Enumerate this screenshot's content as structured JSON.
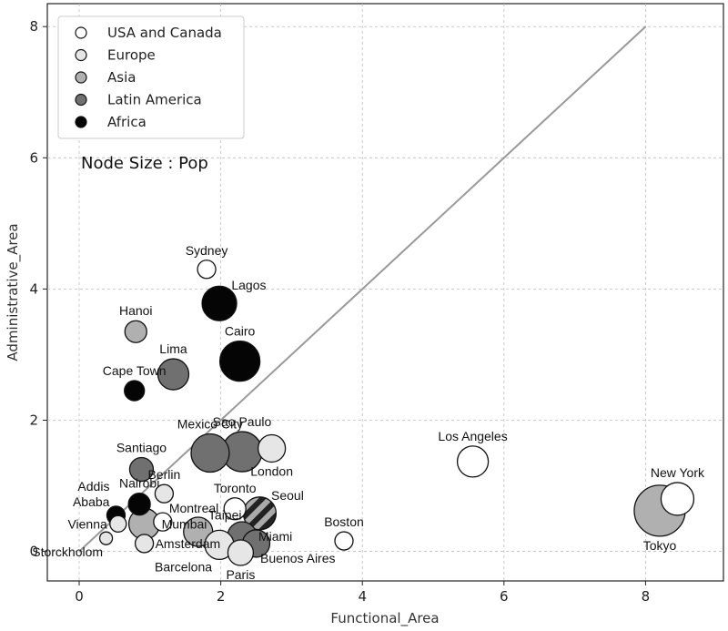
{
  "chart_data": {
    "type": "scatter",
    "xlabel": "Functional_Area",
    "ylabel": "Administrative_Area",
    "xlim": [
      -0.45,
      9.1
    ],
    "ylim": [
      -0.45,
      8.35
    ],
    "xticks": [
      0,
      2,
      4,
      6,
      8
    ],
    "yticks": [
      0,
      2,
      4,
      6,
      8
    ],
    "grid": true,
    "legend_position": "top-left",
    "annotation": "Node Size : Pop",
    "reference_line": {
      "x": [
        0,
        8
      ],
      "y": [
        0,
        8
      ],
      "color": "#999999"
    },
    "regions": [
      {
        "name": "USA and Canada",
        "color": "#ffffff"
      },
      {
        "name": "Europe",
        "color": "#e6e6e6"
      },
      {
        "name": "Asia",
        "color": "#b0b0b0"
      },
      {
        "name": "Latin America",
        "color": "#707070"
      },
      {
        "name": "Africa",
        "color": "#050505"
      }
    ],
    "points": [
      {
        "label": "Sydney",
        "x": 1.8,
        "y": 4.3,
        "size": 10,
        "region": "USA and Canada",
        "label_pos": "above"
      },
      {
        "label": "Lagos",
        "x": 1.98,
        "y": 3.78,
        "size": 19,
        "region": "Africa",
        "label_pos": "above-right"
      },
      {
        "label": "Hanoi",
        "x": 0.8,
        "y": 3.35,
        "size": 12,
        "region": "Asia",
        "label_pos": "above"
      },
      {
        "label": "Cairo",
        "x": 2.27,
        "y": 2.9,
        "size": 22,
        "region": "Africa",
        "label_pos": "above"
      },
      {
        "label": "Lima",
        "x": 1.33,
        "y": 2.7,
        "size": 17,
        "region": "Latin America",
        "label_pos": "above"
      },
      {
        "label": "Cape Town",
        "x": 0.78,
        "y": 2.45,
        "size": 11,
        "region": "Africa",
        "label_pos": "above"
      },
      {
        "label": "Mexico City",
        "x": 1.85,
        "y": 1.5,
        "size": 21,
        "region": "Latin America",
        "label_pos": "above"
      },
      {
        "label": "Sao Paulo",
        "x": 2.3,
        "y": 1.52,
        "size": 22,
        "region": "Latin America",
        "label_pos": "above"
      },
      {
        "label": "London",
        "x": 2.72,
        "y": 1.57,
        "size": 15,
        "region": "Europe",
        "label_pos": "below"
      },
      {
        "label": "Los Angeles",
        "x": 5.56,
        "y": 1.37,
        "size": 17,
        "region": "USA and Canada",
        "label_pos": "above"
      },
      {
        "label": "New York",
        "x": 8.45,
        "y": 0.8,
        "size": 18,
        "region": "USA and Canada",
        "label_pos": "above"
      },
      {
        "label": "Tokyo",
        "x": 8.2,
        "y": 0.62,
        "size": 28,
        "region": "Asia",
        "label_pos": "below"
      },
      {
        "label": "Santiago",
        "x": 0.88,
        "y": 1.25,
        "size": 13,
        "region": "Latin America",
        "label_pos": "above"
      },
      {
        "label": "Berlin",
        "x": 1.2,
        "y": 0.88,
        "size": 10,
        "region": "Europe",
        "label_pos": "above"
      },
      {
        "label": "Addis Ababa",
        "x": 0.52,
        "y": 0.55,
        "size": 10,
        "region": "Africa",
        "label_pos": "above-left"
      },
      {
        "label": "Nairobi",
        "x": 0.85,
        "y": 0.72,
        "size": 12,
        "region": "Africa",
        "label_pos": "above"
      },
      {
        "label": "Montreal",
        "x": 1.18,
        "y": 0.45,
        "size": 10,
        "region": "USA and Canada",
        "label_pos": "above-right"
      },
      {
        "label": "Toronto",
        "x": 2.2,
        "y": 0.65,
        "size": 12,
        "region": "USA and Canada",
        "label_pos": "above"
      },
      {
        "label": "Seoul",
        "x": 2.55,
        "y": 0.58,
        "size": 18,
        "region": "Asia",
        "label_pos": "above-right",
        "hatch": true
      },
      {
        "label": "Vienna",
        "x": 0.55,
        "y": 0.42,
        "size": 9,
        "region": "Europe",
        "label_pos": "left"
      },
      {
        "label": "Mumbai",
        "x": 0.92,
        "y": 0.42,
        "size": 17,
        "region": "Asia",
        "label_pos": "right"
      },
      {
        "label": "Taipei",
        "x": 1.68,
        "y": 0.3,
        "size": 16,
        "region": "Asia",
        "label_pos": "above-right"
      },
      {
        "label": "Miami",
        "x": 2.3,
        "y": 0.23,
        "size": 16,
        "region": "Latin America",
        "label_pos": "right"
      },
      {
        "label": "Boston",
        "x": 3.74,
        "y": 0.16,
        "size": 10,
        "region": "USA and Canada",
        "label_pos": "above"
      },
      {
        "label": "Amsterdam",
        "x": 0.92,
        "y": 0.12,
        "size": 10,
        "region": "Europe",
        "label_pos": "right"
      },
      {
        "label": "Storckholom",
        "x": 0.38,
        "y": 0.2,
        "size": 7,
        "region": "Europe",
        "label_pos": "below-left"
      },
      {
        "label": "Barcelona",
        "x": 1.98,
        "y": 0.1,
        "size": 16,
        "region": "Europe",
        "label_pos": "below-left"
      },
      {
        "label": "Paris",
        "x": 2.28,
        "y": -0.02,
        "size": 14,
        "region": "Europe",
        "label_pos": "below"
      },
      {
        "label": "Buenos Aires",
        "x": 2.5,
        "y": 0.12,
        "size": 15,
        "region": "Latin America",
        "label_pos": "below-right"
      }
    ]
  }
}
